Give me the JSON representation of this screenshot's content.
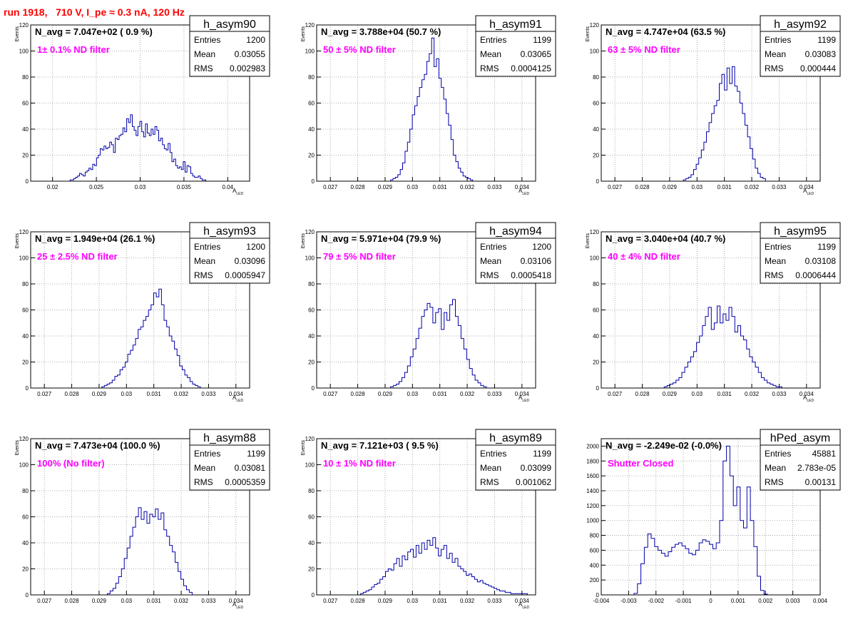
{
  "title": "run 1918,   710 V, I_pe ≈ 0.3 nA, 120 Hz",
  "colors": {
    "hist": "#0000aa",
    "annotation": "#ff00ff",
    "title": "#ff0000",
    "grid": "#999999"
  },
  "chart_data": [
    {
      "type": "histogram",
      "name": "h_asym90",
      "navg": "N_avg = 7.047e+02 ( 0.9 %)",
      "annotation": "1± 0.1% ND filter",
      "stats": {
        "entries": "1200",
        "mean": "0.03055",
        "rms": "0.002983"
      },
      "xlabel": "A",
      "xlabel_sub": "LED",
      "ylabel": "Events",
      "xlim": [
        0.0175,
        0.0425
      ],
      "ylim": [
        0,
        120
      ],
      "xticks": [
        "0.02",
        "0.025",
        "0.03",
        "0.035",
        "0.04"
      ],
      "xtick_values": [
        0.02,
        0.025,
        0.03,
        0.035,
        0.04
      ],
      "yticks": [
        "0",
        "20",
        "40",
        "60",
        "80",
        "100",
        "120"
      ],
      "bin_edges_range": [
        0.022,
        0.0375
      ],
      "counts": [
        1,
        1,
        2,
        3,
        4,
        6,
        5,
        4,
        7,
        8,
        10,
        9,
        13,
        12,
        18,
        20,
        25,
        24,
        27,
        25,
        26,
        30,
        28,
        22,
        33,
        32,
        35,
        36,
        41,
        38,
        48,
        45,
        51,
        42,
        39,
        35,
        42,
        46,
        38,
        34,
        44,
        37,
        35,
        40,
        36,
        42,
        39,
        31,
        33,
        28,
        25,
        24,
        29,
        22,
        15,
        17,
        12,
        10,
        11,
        9,
        15,
        7,
        12,
        11,
        6,
        4,
        3,
        3,
        4,
        2,
        1,
        1
      ]
    },
    {
      "type": "histogram",
      "name": "h_asym91",
      "navg": "N_avg = 3.788e+04 (50.7 %)",
      "annotation": "50 ± 5% ND filter",
      "stats": {
        "entries": "1199",
        "mean": "0.03065",
        "rms": "0.0004125"
      },
      "xlabel": "A",
      "xlabel_sub": "LED",
      "ylabel": "Events",
      "xlim": [
        0.0265,
        0.0345
      ],
      "ylim": [
        0,
        120
      ],
      "xticks": [
        "0.027",
        "0.028",
        "0.029",
        "0.03",
        "0.031",
        "0.032",
        "0.033",
        "0.034"
      ],
      "xtick_values": [
        0.027,
        0.028,
        0.029,
        0.03,
        0.031,
        0.032,
        0.033,
        0.034
      ],
      "yticks": [
        "0",
        "20",
        "40",
        "60",
        "80",
        "100",
        "120"
      ],
      "bin_edges_range": [
        0.0292,
        0.0322
      ],
      "counts": [
        1,
        2,
        3,
        5,
        9,
        14,
        23,
        30,
        40,
        51,
        58,
        65,
        72,
        78,
        82,
        92,
        98,
        110,
        88,
        94,
        79,
        72,
        63,
        52,
        43,
        32,
        20,
        15,
        10,
        7,
        4,
        3,
        2,
        1
      ]
    },
    {
      "type": "histogram",
      "name": "h_asym92",
      "navg": "N_avg = 4.747e+04 (63.5 %)",
      "annotation": "63 ± 5% ND filter",
      "stats": {
        "entries": "1199",
        "mean": "0.03083",
        "rms": "0.000444"
      },
      "xlabel": "A",
      "xlabel_sub": "LED",
      "ylabel": "Events",
      "xlim": [
        0.0265,
        0.0345
      ],
      "ylim": [
        0,
        120
      ],
      "xticks": [
        "0.027",
        "0.028",
        "0.029",
        "0.03",
        "0.031",
        "0.032",
        "0.033",
        "0.034"
      ],
      "xtick_values": [
        0.027,
        0.028,
        0.029,
        0.03,
        0.031,
        0.032,
        0.033,
        0.034
      ],
      "yticks": [
        "0",
        "20",
        "40",
        "60",
        "80",
        "100",
        "120"
      ],
      "bin_edges_range": [
        0.0295,
        0.0325
      ],
      "counts": [
        1,
        2,
        3,
        5,
        9,
        13,
        18,
        24,
        30,
        38,
        45,
        52,
        58,
        62,
        75,
        82,
        70,
        87,
        75,
        88,
        73,
        69,
        60,
        52,
        43,
        34,
        25,
        17,
        10,
        6,
        3,
        2
      ]
    },
    {
      "type": "histogram",
      "name": "h_asym93",
      "navg": "N_avg = 1.949e+04 (26.1 %)",
      "annotation": "25 ± 2.5% ND filter",
      "stats": {
        "entries": "1200",
        "mean": "0.03096",
        "rms": "0.0005947"
      },
      "xlabel": "A",
      "xlabel_sub": "LED",
      "ylabel": "Events",
      "xlim": [
        0.0265,
        0.0345
      ],
      "ylim": [
        0,
        120
      ],
      "xticks": [
        "0.027",
        "0.028",
        "0.029",
        "0.03",
        "0.031",
        "0.032",
        "0.033",
        "0.034"
      ],
      "xtick_values": [
        0.027,
        0.028,
        0.029,
        0.03,
        0.031,
        0.032,
        0.033,
        0.034
      ],
      "yticks": [
        "0",
        "20",
        "40",
        "60",
        "80",
        "100",
        "120"
      ],
      "bin_edges_range": [
        0.0291,
        0.0327
      ],
      "counts": [
        1,
        2,
        3,
        4,
        6,
        9,
        10,
        14,
        16,
        20,
        26,
        29,
        33,
        38,
        45,
        47,
        52,
        55,
        60,
        64,
        73,
        70,
        76,
        64,
        52,
        47,
        40,
        36,
        30,
        25,
        17,
        14,
        10,
        8,
        5,
        3,
        2,
        1
      ]
    },
    {
      "type": "histogram",
      "name": "h_asym94",
      "navg": "N_avg = 5.971e+04 (79.9 %)",
      "annotation": "79 ± 5% ND filter",
      "stats": {
        "entries": "1200",
        "mean": "0.03106",
        "rms": "0.0005418"
      },
      "xlabel": "A",
      "xlabel_sub": "LED",
      "ylabel": "Events",
      "xlim": [
        0.0265,
        0.0345
      ],
      "ylim": [
        0,
        120
      ],
      "xticks": [
        "0.027",
        "0.028",
        "0.029",
        "0.03",
        "0.031",
        "0.032",
        "0.033",
        "0.034"
      ],
      "xtick_values": [
        0.027,
        0.028,
        0.029,
        0.03,
        0.031,
        0.032,
        0.033,
        0.034
      ],
      "yticks": [
        "0",
        "20",
        "40",
        "60",
        "80",
        "100",
        "120"
      ],
      "bin_edges_range": [
        0.0292,
        0.0327
      ],
      "counts": [
        1,
        2,
        3,
        5,
        8,
        12,
        17,
        24,
        30,
        38,
        46,
        55,
        60,
        65,
        62,
        50,
        58,
        61,
        45,
        58,
        52,
        64,
        68,
        55,
        48,
        38,
        30,
        22,
        15,
        10,
        6,
        4,
        2,
        1
      ]
    },
    {
      "type": "histogram",
      "name": "h_asym95",
      "navg": "N_avg = 3.040e+04 (40.7 %)",
      "annotation": "40 ± 4% ND filter",
      "stats": {
        "entries": "1199",
        "mean": "0.03108",
        "rms": "0.0006444"
      },
      "xlabel": "A",
      "xlabel_sub": "LED",
      "ylabel": "Events",
      "xlim": [
        0.0265,
        0.0345
      ],
      "ylim": [
        0,
        120
      ],
      "xticks": [
        "0.027",
        "0.028",
        "0.029",
        "0.03",
        "0.031",
        "0.032",
        "0.033",
        "0.034"
      ],
      "xtick_values": [
        0.027,
        0.028,
        0.029,
        0.03,
        0.031,
        0.032,
        0.033,
        0.034
      ],
      "yticks": [
        "0",
        "20",
        "40",
        "60",
        "80",
        "100",
        "120"
      ],
      "bin_edges_range": [
        0.0288,
        0.0331
      ],
      "counts": [
        1,
        2,
        3,
        4,
        6,
        8,
        12,
        16,
        20,
        24,
        28,
        35,
        40,
        48,
        55,
        62,
        45,
        50,
        63,
        50,
        57,
        52,
        62,
        55,
        43,
        48,
        40,
        37,
        30,
        24,
        20,
        16,
        12,
        8,
        6,
        4,
        3,
        2,
        1,
        1
      ]
    },
    {
      "type": "histogram",
      "name": "h_asym88",
      "navg": "N_avg = 7.473e+04 (100.0 %)",
      "annotation": "100% (No filter)",
      "stats": {
        "entries": "1199",
        "mean": "0.03081",
        "rms": "0.0005359"
      },
      "xlabel": "A",
      "xlabel_sub": "LED",
      "ylabel": "Events",
      "xlim": [
        0.0265,
        0.0345
      ],
      "ylim": [
        0,
        120
      ],
      "xticks": [
        "0.027",
        "0.028",
        "0.029",
        "0.03",
        "0.031",
        "0.032",
        "0.033",
        "0.034"
      ],
      "xtick_values": [
        0.027,
        0.028,
        0.029,
        0.03,
        0.031,
        0.032,
        0.033,
        0.034
      ],
      "yticks": [
        "0",
        "20",
        "40",
        "60",
        "80",
        "100",
        "120"
      ],
      "bin_edges_range": [
        0.0293,
        0.0324
      ],
      "counts": [
        1,
        3,
        5,
        9,
        14,
        20,
        28,
        36,
        45,
        52,
        60,
        67,
        58,
        64,
        55,
        62,
        60,
        66,
        58,
        63,
        50,
        45,
        38,
        33,
        25,
        18,
        12,
        7,
        4,
        2
      ]
    },
    {
      "type": "histogram",
      "name": "h_asym89",
      "navg": "N_avg = 7.121e+03 ( 9.5 %)",
      "annotation": "10 ± 1% ND filter",
      "stats": {
        "entries": "1199",
        "mean": "0.03099",
        "rms": "0.001062"
      },
      "xlabel": "A",
      "xlabel_sub": "LED",
      "ylabel": "Events",
      "xlim": [
        0.0265,
        0.0345
      ],
      "ylim": [
        0,
        120
      ],
      "xticks": [
        "0.027",
        "0.028",
        "0.029",
        "0.03",
        "0.031",
        "0.032",
        "0.033",
        "0.034"
      ],
      "xtick_values": [
        0.027,
        0.028,
        0.029,
        0.03,
        0.031,
        0.032,
        0.033,
        0.034
      ],
      "yticks": [
        "0",
        "20",
        "40",
        "60",
        "80",
        "100",
        "120"
      ],
      "bin_edges_range": [
        0.0281,
        0.0342
      ],
      "counts": [
        1,
        2,
        3,
        4,
        6,
        8,
        9,
        12,
        14,
        18,
        20,
        19,
        24,
        28,
        22,
        30,
        27,
        33,
        35,
        29,
        38,
        32,
        40,
        35,
        42,
        38,
        44,
        36,
        30,
        35,
        38,
        28,
        32,
        25,
        28,
        22,
        20,
        18,
        15,
        16,
        14,
        12,
        10,
        11,
        9,
        8,
        7,
        6,
        5,
        4,
        3,
        3,
        2,
        2,
        1,
        1,
        1,
        1,
        1,
        1
      ]
    },
    {
      "type": "histogram",
      "name": "hPed_asym",
      "navg": "N_avg = -2.249e-02 (-0.0%)",
      "annotation": "Shutter Closed",
      "stats": {
        "entries": "45881",
        "mean": "2.783e-05",
        "rms": "0.00131"
      },
      "xlabel": "",
      "xlabel_sub": "",
      "ylabel": "",
      "xlim": [
        -0.004,
        0.004
      ],
      "ylim": [
        0,
        2100
      ],
      "xticks": [
        "-0.004",
        "-0.003",
        "-0.002",
        "-0.001",
        "0",
        "0.001",
        "0.002",
        "0.003",
        "0.004"
      ],
      "xtick_values": [
        -0.004,
        -0.003,
        -0.002,
        -0.001,
        0,
        0.001,
        0.002,
        0.003,
        0.004
      ],
      "yticks": [
        "0",
        "200",
        "400",
        "600",
        "800",
        "1000",
        "1200",
        "1400",
        "1600",
        "1800",
        "2000"
      ],
      "bin_edges_range": [
        -0.0028,
        0.0022
      ],
      "counts": [
        20,
        150,
        420,
        640,
        820,
        760,
        650,
        600,
        560,
        520,
        580,
        640,
        680,
        700,
        660,
        620,
        560,
        540,
        600,
        700,
        740,
        720,
        680,
        620,
        700,
        1000,
        1800,
        2000,
        1600,
        1200,
        1450,
        1000,
        900,
        1450,
        1000,
        650,
        250,
        60,
        10,
        0
      ]
    }
  ]
}
